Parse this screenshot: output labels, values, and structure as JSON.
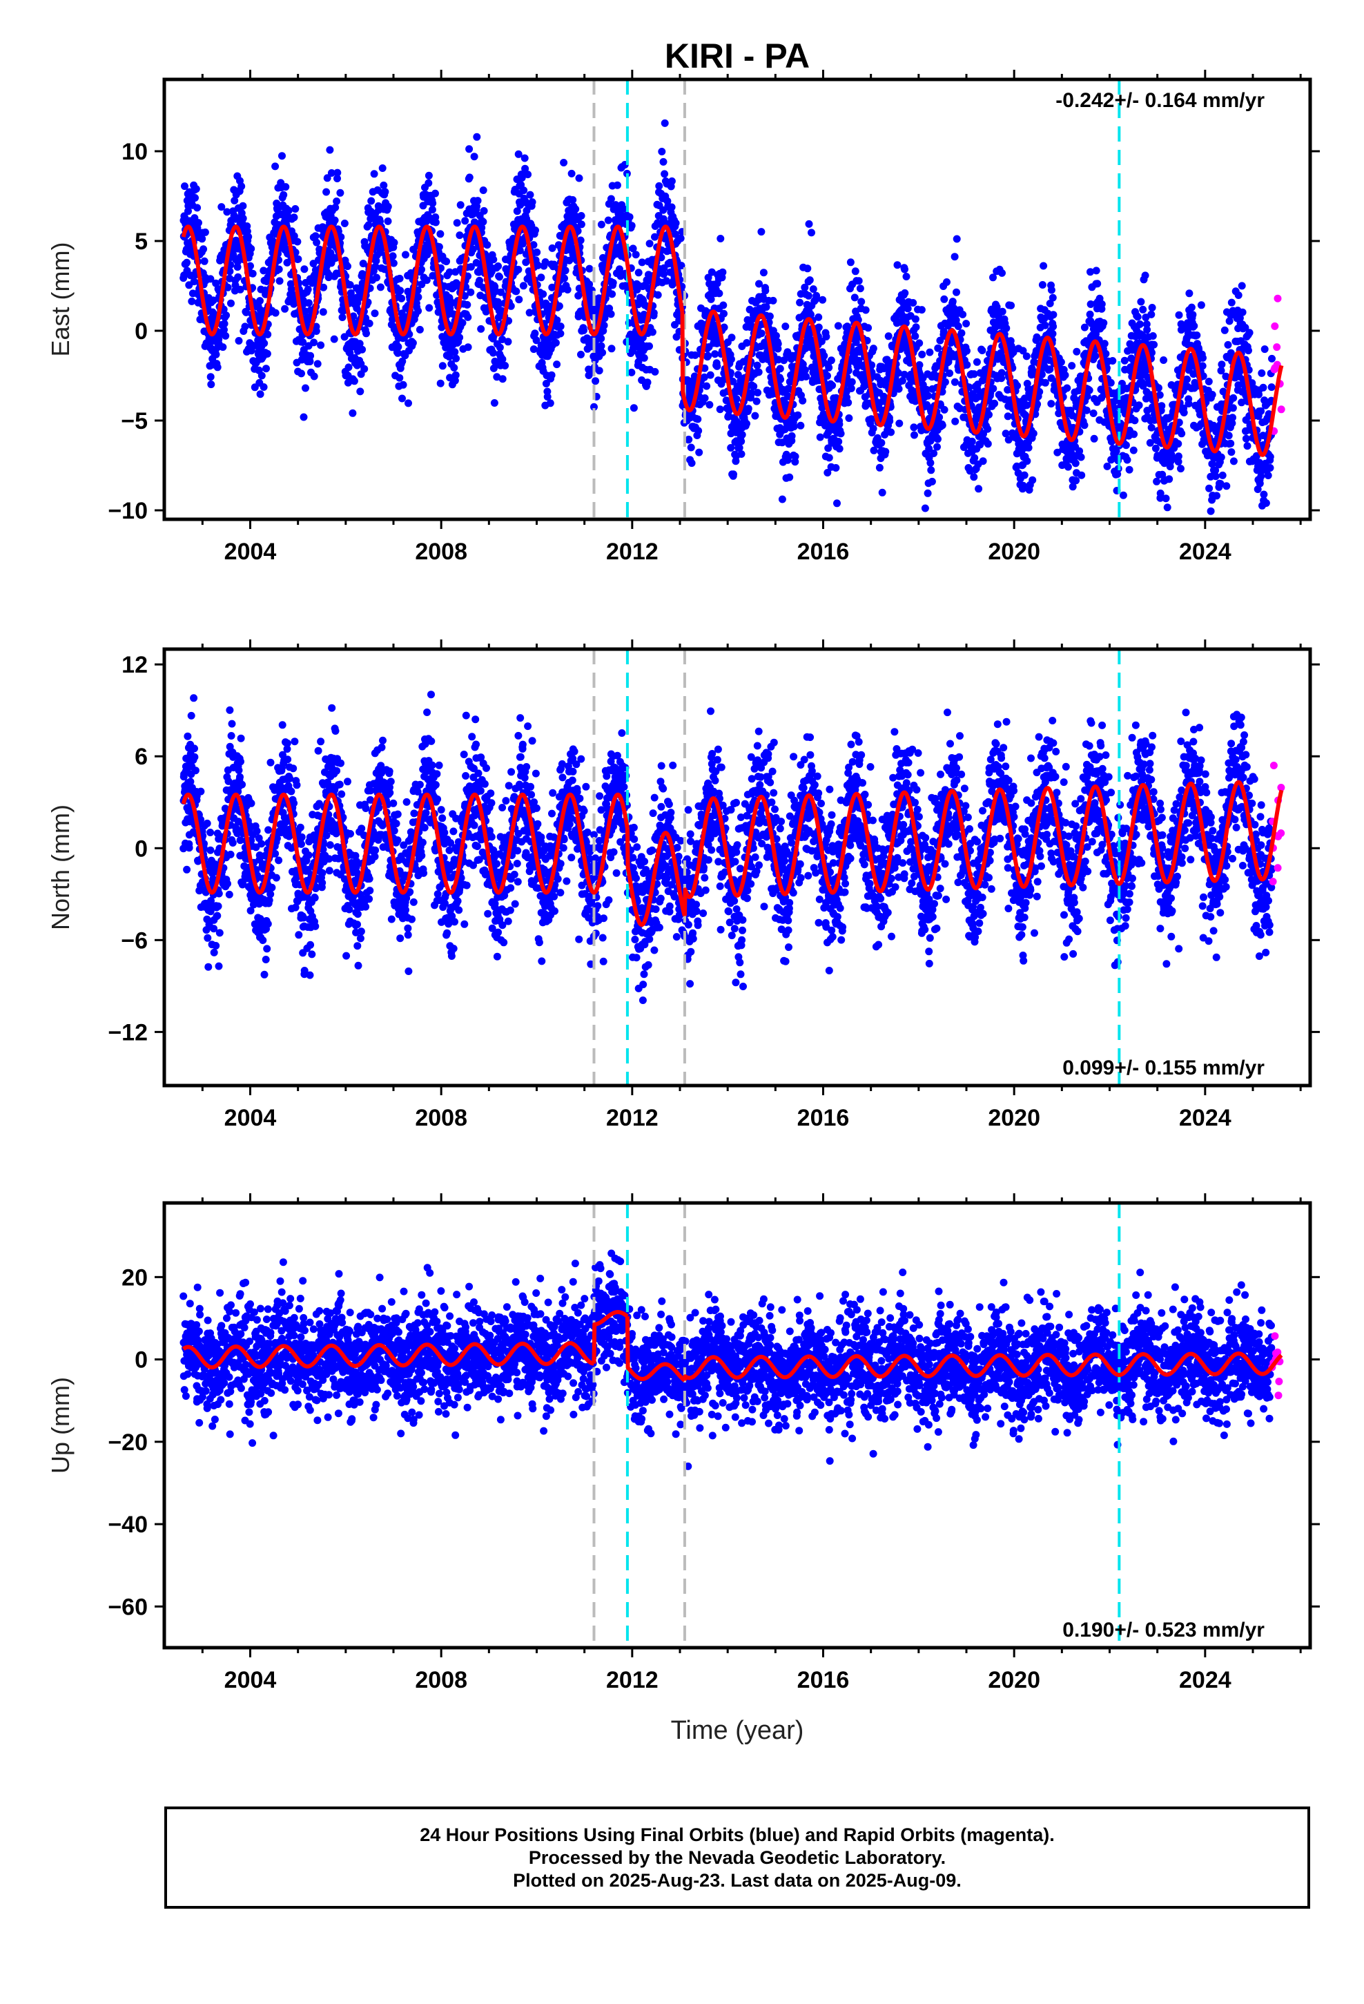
{
  "title": "KIRI - PA",
  "xlabel": "Time (year)",
  "caption": [
    "24 Hour Positions Using Final Orbits (blue) and Rapid Orbits (magenta).",
    "Processed by the Nevada Geodetic Laboratory.",
    "Plotted on 2025-Aug-23. Last data on 2025-Aug-09."
  ],
  "colors": {
    "final_orbits": "#0000ff",
    "rapid_orbits": "#ff00ff",
    "model": "#ff0000",
    "equipment_change": "#bbbbbb",
    "earthquake": "#00e5ee"
  },
  "chart_data": [
    {
      "type": "scatter",
      "panel": "East",
      "ylabel": "East (mm)",
      "rate_text": "-0.242+/- 0.164 mm/yr",
      "xlim": [
        2002.2,
        2026.2
      ],
      "ylim": [
        -10.5,
        14
      ],
      "xticks": [
        2004,
        2008,
        2012,
        2016,
        2020,
        2024
      ],
      "yticks": [
        10,
        5,
        0,
        -5,
        -10
      ],
      "gray_dashed_lines": [
        2011.2,
        2013.1
      ],
      "cyan_dashed_lines": [
        2011.9,
        2022.2
      ],
      "series": [
        {
          "name": "Final Orbits",
          "color": "#0000ff",
          "x_range": [
            2002.6,
            2025.4
          ]
        },
        {
          "name": "Rapid Orbits",
          "color": "#ff00ff",
          "x_range": [
            2025.4,
            2025.6
          ]
        }
      ],
      "model_segments": [
        {
          "x_range": [
            2002.6,
            2013.05
          ],
          "trend": [
            2.8,
            2.8
          ],
          "amplitude": 3.0
        },
        {
          "x_range": [
            2013.05,
            2025.6
          ],
          "trend": [
            -1.6,
            -4.2
          ],
          "amplitude": 2.8
        }
      ],
      "scatter_sigma": 1.7
    },
    {
      "type": "scatter",
      "panel": "North",
      "ylabel": "North (mm)",
      "rate_text": "0.099+/- 0.155 mm/yr",
      "xlim": [
        2002.2,
        2026.2
      ],
      "ylim": [
        -15.5,
        13
      ],
      "xticks": [
        2004,
        2008,
        2012,
        2016,
        2020,
        2024
      ],
      "yticks": [
        12,
        6,
        0,
        -6,
        -12
      ],
      "gray_dashed_lines": [
        2011.2,
        2013.1
      ],
      "cyan_dashed_lines": [
        2011.9,
        2022.2
      ],
      "series": [
        {
          "name": "Final Orbits",
          "color": "#0000ff",
          "x_range": [
            2002.6,
            2025.4
          ]
        },
        {
          "name": "Rapid Orbits",
          "color": "#ff00ff",
          "x_range": [
            2025.4,
            2025.6
          ]
        }
      ],
      "model_segments": [
        {
          "x_range": [
            2002.6,
            2011.9
          ],
          "trend": [
            0.3,
            0.3
          ],
          "amplitude": 3.2
        },
        {
          "x_range": [
            2011.9,
            2013.1
          ],
          "trend": [
            -2.0,
            -2.0
          ],
          "amplitude": 3.0
        },
        {
          "x_range": [
            2013.1,
            2025.6
          ],
          "trend": [
            0.0,
            1.2
          ],
          "amplitude": 3.2
        }
      ],
      "scatter_sigma": 2.1
    },
    {
      "type": "scatter",
      "panel": "Up",
      "ylabel": "Up (mm)",
      "rate_text": "0.190+/- 0.523 mm/yr",
      "xlim": [
        2002.2,
        2026.2
      ],
      "ylim": [
        -70,
        38
      ],
      "xticks": [
        2004,
        2008,
        2012,
        2016,
        2020,
        2024
      ],
      "yticks": [
        20,
        0,
        -20,
        -40,
        -60
      ],
      "gray_dashed_lines": [
        2011.2,
        2013.1
      ],
      "cyan_dashed_lines": [
        2011.9,
        2022.2
      ],
      "series": [
        {
          "name": "Final Orbits",
          "color": "#0000ff",
          "x_range": [
            2002.6,
            2025.4
          ]
        },
        {
          "name": "Rapid Orbits",
          "color": "#ff00ff",
          "x_range": [
            2025.4,
            2025.6
          ]
        }
      ],
      "model_segments": [
        {
          "x_range": [
            2002.6,
            2011.2
          ],
          "trend": [
            0.5,
            1.5
          ],
          "amplitude": 2.5
        },
        {
          "x_range": [
            2011.2,
            2011.9
          ],
          "trend": [
            10.0,
            10.0
          ],
          "amplitude": 1.5
        },
        {
          "x_range": [
            2011.9,
            2013.1
          ],
          "trend": [
            -2.5,
            -3.5
          ],
          "amplitude": 2.0
        },
        {
          "x_range": [
            2013.1,
            2025.6
          ],
          "trend": [
            -2.0,
            -1.0
          ],
          "amplitude": 2.5
        }
      ],
      "scatter_sigma": 6.0
    }
  ]
}
